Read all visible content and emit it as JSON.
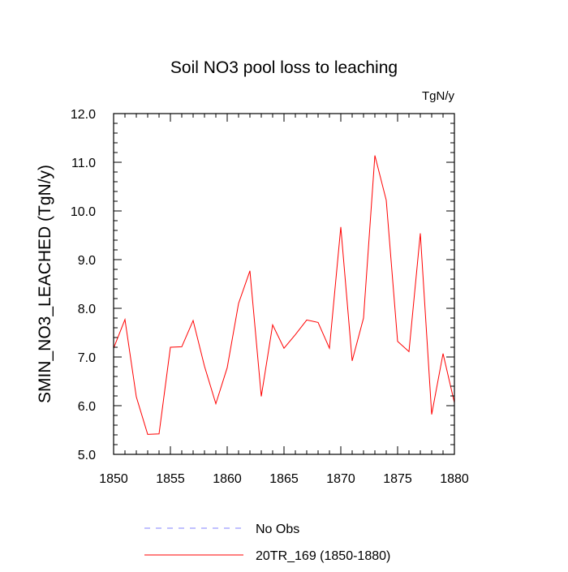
{
  "chart_data": {
    "type": "line",
    "title": "Soil NO3 pool loss to leaching",
    "units_label": "TgN/y",
    "xlabel": "",
    "ylabel": "SMIN_NO3_LEACHED  (TgN/y)",
    "xlim": [
      1850,
      1880
    ],
    "ylim": [
      5.0,
      12.0
    ],
    "x_ticks": [
      1850,
      1855,
      1860,
      1865,
      1870,
      1875,
      1880
    ],
    "x_tick_labels": [
      "1850",
      "1855",
      "1860",
      "1865",
      "1870",
      "1875",
      "1880"
    ],
    "y_ticks": [
      5.0,
      6.0,
      7.0,
      8.0,
      9.0,
      10.0,
      11.0,
      12.0
    ],
    "y_tick_labels": [
      "5.0",
      "6.0",
      "7.0",
      "8.0",
      "9.0",
      "10.0",
      "11.0",
      "12.0"
    ],
    "grid": false,
    "legend_position": "bottom",
    "series": [
      {
        "name": "No Obs",
        "color": "#8080ff",
        "dash": true,
        "x": [],
        "values": []
      },
      {
        "name": "20TR_169 (1850-1880)",
        "color": "#ff0000",
        "dash": false,
        "x": [
          1850,
          1851,
          1852,
          1853,
          1854,
          1855,
          1856,
          1857,
          1858,
          1859,
          1860,
          1861,
          1862,
          1863,
          1864,
          1865,
          1866,
          1867,
          1868,
          1869,
          1870,
          1871,
          1872,
          1873,
          1874,
          1875,
          1876,
          1877,
          1878,
          1879,
          1880
        ],
        "values": [
          7.18,
          7.77,
          6.18,
          5.41,
          5.42,
          7.2,
          7.21,
          7.75,
          6.81,
          6.04,
          6.78,
          8.1,
          8.77,
          6.19,
          7.66,
          7.18,
          7.46,
          7.76,
          7.71,
          7.18,
          9.67,
          6.92,
          7.8,
          11.14,
          10.22,
          7.32,
          7.11,
          9.54,
          5.82,
          7.07,
          6.06
        ]
      }
    ]
  }
}
